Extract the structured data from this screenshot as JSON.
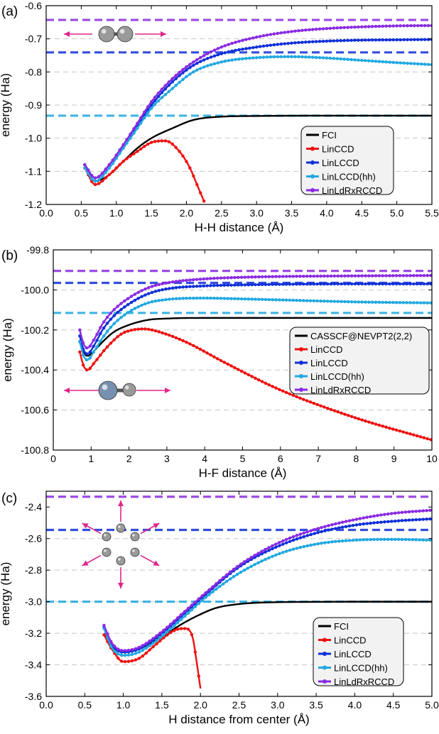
{
  "colors": {
    "FCI": "#000000",
    "CASSCF": "#000000",
    "LinCCD": "#ee1111",
    "LinLCCD": "#1030d8",
    "LinLCCDhh": "#20a8e0",
    "LinLdRxRCCD": "#8a2be2",
    "arrow": "#e0258a"
  },
  "chart_data": [
    {
      "type": "line",
      "panel_label": "(a)",
      "xlabel": "H-H distance (Å)",
      "ylabel": "energy (Ha)",
      "xlim": [
        0.0,
        5.5
      ],
      "ylim": [
        -1.2,
        -0.6
      ],
      "xticks": [
        0.0,
        0.5,
        1.0,
        1.5,
        2.0,
        2.5,
        3.0,
        3.5,
        4.0,
        4.5,
        5.0,
        5.5
      ],
      "xtick_labels": [
        "0.0",
        "0.5",
        "1.0",
        "1.5",
        "2.0",
        "2.5",
        "3.0",
        "3.5",
        "4.0",
        "4.5",
        "5.0",
        "5.5"
      ],
      "yticks": [
        -1.2,
        -1.1,
        -1.0,
        -0.9,
        -0.8,
        -0.7,
        -0.6
      ],
      "ytick_labels": [
        "-1.2",
        "-1.1",
        "-1.0",
        "-0.9",
        "-0.8",
        "-0.7",
        "-0.6"
      ],
      "legend": [
        "FCI",
        "LinCCD",
        "LinLCCD",
        "LinLCCD(hh)",
        "LinLdRxRCCD"
      ],
      "legend_position": "right",
      "hlines": [
        {
          "series": "LinLdRxRCCD",
          "y": -0.643
        },
        {
          "series": "LinLCCD",
          "y": -0.741
        },
        {
          "series": "LinLCCDhh",
          "y": -0.932
        }
      ],
      "series": [
        {
          "name": "FCI",
          "key": "FCI",
          "x": [
            0.55,
            0.7,
            0.9,
            1.1,
            1.3,
            1.5,
            1.8,
            2.1,
            2.5,
            3.0,
            4.0,
            5.5
          ],
          "y": [
            -1.08,
            -1.13,
            -1.11,
            -1.07,
            -1.03,
            -1.0,
            -0.97,
            -0.945,
            -0.935,
            -0.933,
            -0.932,
            -0.932
          ]
        },
        {
          "name": "LinCCD",
          "key": "LinCCD",
          "x": [
            0.55,
            0.7,
            0.9,
            1.1,
            1.3,
            1.5,
            1.7,
            1.9,
            2.05,
            2.15,
            2.25
          ],
          "y": [
            -1.09,
            -1.14,
            -1.11,
            -1.07,
            -1.04,
            -1.013,
            -1.008,
            -1.04,
            -1.09,
            -1.14,
            -1.19
          ]
        },
        {
          "name": "LinLCCD",
          "key": "LinLCCD",
          "x": [
            0.55,
            0.7,
            0.9,
            1.1,
            1.3,
            1.5,
            1.8,
            2.1,
            2.5,
            3.0,
            3.5,
            4.0,
            4.5,
            5.0,
            5.5
          ],
          "y": [
            -1.08,
            -1.12,
            -1.08,
            -1.02,
            -0.96,
            -0.9,
            -0.83,
            -0.78,
            -0.745,
            -0.725,
            -0.713,
            -0.707,
            -0.704,
            -0.703,
            -0.702
          ]
        },
        {
          "name": "LinLCCD(hh)",
          "key": "LinLCCDhh",
          "x": [
            0.55,
            0.7,
            0.9,
            1.1,
            1.3,
            1.5,
            1.8,
            2.1,
            2.5,
            3.0,
            3.5,
            4.0,
            4.5,
            5.0,
            5.5
          ],
          "y": [
            -1.09,
            -1.13,
            -1.09,
            -1.03,
            -0.97,
            -0.91,
            -0.85,
            -0.8,
            -0.77,
            -0.757,
            -0.754,
            -0.758,
            -0.765,
            -0.772,
            -0.778
          ]
        },
        {
          "name": "LinLdRxRCCD",
          "key": "LinLdRxRCCD",
          "x": [
            0.55,
            0.7,
            0.9,
            1.1,
            1.3,
            1.5,
            1.8,
            2.1,
            2.5,
            3.0,
            3.5,
            4.0,
            4.5,
            5.0,
            5.5
          ],
          "y": [
            -1.08,
            -1.12,
            -1.08,
            -1.02,
            -0.955,
            -0.89,
            -0.82,
            -0.77,
            -0.725,
            -0.695,
            -0.678,
            -0.669,
            -0.664,
            -0.661,
            -0.66
          ]
        }
      ]
    },
    {
      "type": "line",
      "panel_label": "(b)",
      "xlabel": "H-F distance (Å)",
      "ylabel": "energy (Ha)",
      "xlim": [
        0,
        10
      ],
      "ylim": [
        -100.8,
        -99.8
      ],
      "xticks": [
        0,
        1,
        2,
        3,
        4,
        5,
        6,
        7,
        8,
        9,
        10
      ],
      "xtick_labels": [
        "0",
        "1",
        "2",
        "3",
        "4",
        "5",
        "6",
        "7",
        "8",
        "9",
        "10"
      ],
      "yticks": [
        -100.8,
        -100.6,
        -100.4,
        -100.2,
        -100.0,
        -99.8
      ],
      "ytick_labels": [
        "-100.8",
        "-100.6",
        "-100.4",
        "-100.2",
        "-100.0",
        "-99.8"
      ],
      "legend": [
        "CASSCF@NEVPT2(2,2)",
        "LinCCD",
        "LinLCCD",
        "LinLCCD(hh)",
        "LinLdRxRCCD"
      ],
      "legend_position": "right",
      "hlines": [
        {
          "series": "LinLdRxRCCD",
          "y": -99.905
        },
        {
          "series": "LinLCCD",
          "y": -99.965
        },
        {
          "series": "LinLCCDhh",
          "y": -100.115
        }
      ],
      "series": [
        {
          "name": "CASSCF@NEVPT2(2,2)",
          "key": "CASSCF",
          "x": [
            0.7,
            0.8,
            0.9,
            1.1,
            1.3,
            1.6,
            2.0,
            2.5,
            3.0,
            4.0,
            5.0,
            10.0
          ],
          "y": [
            -100.25,
            -100.31,
            -100.33,
            -100.3,
            -100.26,
            -100.21,
            -100.175,
            -100.15,
            -100.143,
            -100.14,
            -100.14,
            -100.14
          ]
        },
        {
          "name": "LinCCD",
          "key": "LinCCD",
          "x": [
            0.7,
            0.8,
            0.9,
            1.1,
            1.4,
            1.8,
            2.1,
            2.4,
            2.8,
            3.5,
            4.5,
            6.0,
            8.0,
            10.0
          ],
          "y": [
            -100.31,
            -100.38,
            -100.4,
            -100.36,
            -100.29,
            -100.22,
            -100.2,
            -100.195,
            -100.21,
            -100.26,
            -100.36,
            -100.5,
            -100.64,
            -100.75
          ]
        },
        {
          "name": "LinLCCD",
          "key": "LinLCCD",
          "x": [
            0.7,
            0.8,
            0.9,
            1.1,
            1.3,
            1.6,
            2.0,
            2.5,
            3.0,
            4.0,
            5.0,
            6.0,
            8.0,
            10.0
          ],
          "y": [
            -100.23,
            -100.3,
            -100.32,
            -100.27,
            -100.2,
            -100.13,
            -100.07,
            -100.02,
            -99.995,
            -99.98,
            -99.975,
            -99.972,
            -99.97,
            -99.97
          ]
        },
        {
          "name": "LinLCCD(hh)",
          "key": "LinLCCDhh",
          "x": [
            0.7,
            0.8,
            0.9,
            1.1,
            1.3,
            1.6,
            2.0,
            2.5,
            3.0,
            3.5,
            4.0,
            5.0,
            6.0,
            8.0,
            10.0
          ],
          "y": [
            -100.26,
            -100.33,
            -100.35,
            -100.3,
            -100.24,
            -100.17,
            -100.11,
            -100.065,
            -100.048,
            -100.042,
            -100.041,
            -100.045,
            -100.05,
            -100.06,
            -100.065
          ]
        },
        {
          "name": "LinLdRxRCCD",
          "key": "LinLdRxRCCD",
          "x": [
            0.7,
            0.8,
            0.9,
            1.1,
            1.3,
            1.6,
            2.0,
            2.5,
            3.0,
            4.0,
            5.0,
            6.0,
            8.0,
            10.0
          ],
          "y": [
            -100.2,
            -100.27,
            -100.29,
            -100.24,
            -100.17,
            -100.1,
            -100.04,
            -99.99,
            -99.965,
            -99.945,
            -99.937,
            -99.933,
            -99.93,
            -99.928
          ]
        }
      ]
    },
    {
      "type": "line",
      "panel_label": "(c)",
      "xlabel": "H distance from center (Å)",
      "ylabel": "energy (Ha)",
      "xlim": [
        0.0,
        5.0
      ],
      "ylim": [
        -3.6,
        -2.3
      ],
      "xticks": [
        0.0,
        0.5,
        1.0,
        1.5,
        2.0,
        2.5,
        3.0,
        3.5,
        4.0,
        4.5,
        5.0
      ],
      "xtick_labels": [
        "0.0",
        "0.5",
        "1.0",
        "1.5",
        "2.0",
        "2.5",
        "3.0",
        "3.5",
        "4.0",
        "4.5",
        "5.0"
      ],
      "yticks": [
        -3.6,
        -3.4,
        -3.2,
        -3.0,
        -2.8,
        -2.6,
        -2.4
      ],
      "ytick_labels": [
        "-3.6",
        "-3.4",
        "-3.2",
        "-3.0",
        "-2.8",
        "-2.6",
        "-2.4"
      ],
      "legend": [
        "FCI",
        "LinCCD",
        "LinLCCD",
        "LinLCCD(hh)",
        "LinLdRxRCCD"
      ],
      "legend_position": "right",
      "hlines": [
        {
          "series": "LinLdRxRCCD",
          "y": -2.335
        },
        {
          "series": "LinLCCD",
          "y": -2.545
        },
        {
          "series": "LinLCCDhh",
          "y": -3.0
        }
      ],
      "series": [
        {
          "name": "FCI",
          "key": "FCI",
          "x": [
            0.75,
            0.85,
            1.0,
            1.2,
            1.4,
            1.6,
            1.8,
            2.0,
            2.2,
            2.5,
            3.0,
            3.5,
            4.0,
            5.0
          ],
          "y": [
            -3.2,
            -3.28,
            -3.32,
            -3.3,
            -3.25,
            -3.19,
            -3.13,
            -3.08,
            -3.04,
            -3.015,
            -3.003,
            -3.001,
            -3.0,
            -3.0
          ]
        },
        {
          "name": "LinCCD",
          "key": "LinCCD",
          "x": [
            0.75,
            0.85,
            1.0,
            1.2,
            1.4,
            1.6,
            1.7,
            1.8,
            1.9,
            1.95,
            2.0
          ],
          "y": [
            -3.21,
            -3.3,
            -3.38,
            -3.36,
            -3.28,
            -3.2,
            -3.175,
            -3.17,
            -3.23,
            -3.38,
            -3.55
          ]
        },
        {
          "name": "LinLCCD",
          "key": "LinLCCD",
          "x": [
            0.75,
            0.85,
            1.0,
            1.2,
            1.5,
            1.8,
            2.1,
            2.5,
            3.0,
            3.5,
            4.0,
            4.5,
            5.0
          ],
          "y": [
            -3.16,
            -3.27,
            -3.32,
            -3.3,
            -3.2,
            -3.07,
            -2.94,
            -2.78,
            -2.65,
            -2.565,
            -2.515,
            -2.49,
            -2.475
          ]
        },
        {
          "name": "LinLCCD(hh)",
          "key": "LinLCCDhh",
          "x": [
            0.75,
            0.85,
            1.0,
            1.2,
            1.5,
            1.8,
            2.1,
            2.5,
            3.0,
            3.5,
            4.0,
            4.5,
            5.0
          ],
          "y": [
            -3.17,
            -3.29,
            -3.34,
            -3.32,
            -3.22,
            -3.09,
            -2.96,
            -2.82,
            -2.7,
            -2.635,
            -2.61,
            -2.605,
            -2.61
          ]
        },
        {
          "name": "LinLdRxRCCD",
          "key": "LinLdRxRCCD",
          "x": [
            0.75,
            0.85,
            1.0,
            1.2,
            1.5,
            1.8,
            2.1,
            2.5,
            3.0,
            3.5,
            4.0,
            4.5,
            5.0
          ],
          "y": [
            -3.15,
            -3.26,
            -3.31,
            -3.29,
            -3.19,
            -3.06,
            -2.93,
            -2.77,
            -2.63,
            -2.54,
            -2.48,
            -2.44,
            -2.42
          ]
        }
      ]
    }
  ]
}
